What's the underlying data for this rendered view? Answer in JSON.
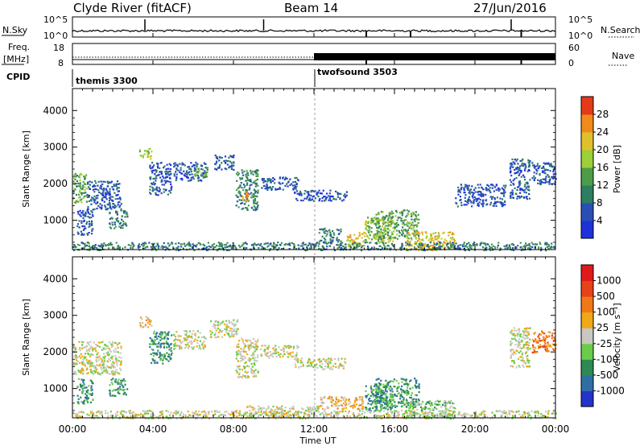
{
  "header": {
    "station": "Clyde River (fitACF)",
    "beam": "Beam 14",
    "date": "27/Jun/2016"
  },
  "param_panels": {
    "nsky_label": "N.Sky",
    "nsky_ticks": [
      "10^5",
      "10^0"
    ],
    "nsearch_label": "N.Search",
    "nsearch_ticks": [
      "10^5",
      "10^0"
    ],
    "freq_label_1": "Freq.",
    "freq_label_2": "[MHz]",
    "freq_ticks": [
      "18",
      "8"
    ],
    "nave_label": "Nave",
    "nave_ticks": [
      "60",
      "0"
    ],
    "cpid_label": "CPID",
    "cpid_modes": [
      {
        "name": "themis 3300",
        "start_hour": 0
      },
      {
        "name": "twofsound 3503",
        "start_hour": 12
      }
    ],
    "nsky_spikes_hours": [
      3.6,
      9.5,
      21.8
    ],
    "nsearch_drops_hours": [
      14.6,
      16.8,
      22.3
    ],
    "nave_drops_hours": [
      14.6,
      22.3
    ]
  },
  "chart_data": [
    {
      "type": "heatmap",
      "name": "power",
      "ylabel": "Slant Range [km]",
      "ylim": [
        200,
        4600
      ],
      "y_ticks": [
        1000,
        2000,
        3000,
        4000
      ],
      "xlim": [
        0,
        24
      ],
      "x_ticks": [
        "00:00",
        "04:00",
        "08:00",
        "12:00",
        "16:00",
        "20:00",
        "00:00"
      ],
      "colorbar": {
        "label": "Power [dB]",
        "ticks": [
          4,
          8,
          12,
          16,
          20,
          24,
          28
        ],
        "range": [
          0,
          32
        ],
        "colors": [
          "#1e32dc",
          "#2a4fb4",
          "#2e7e62",
          "#4d9c4a",
          "#9ccf3a",
          "#e0c02a",
          "#f08a1a",
          "#e53a1a"
        ]
      },
      "regions": [
        {
          "t0": 0.0,
          "t1": 0.7,
          "r0": 1500,
          "r1": 2300,
          "level": 3
        },
        {
          "t0": 0.7,
          "t1": 2.4,
          "r0": 1300,
          "r1": 2100,
          "level": 1
        },
        {
          "t0": 0.2,
          "t1": 1.0,
          "r0": 600,
          "r1": 1300,
          "level": 1
        },
        {
          "t0": 1.8,
          "t1": 2.7,
          "r0": 800,
          "r1": 1300,
          "level": 2
        },
        {
          "t0": 3.3,
          "t1": 3.9,
          "r0": 2700,
          "r1": 3000,
          "level": 4
        },
        {
          "t0": 3.8,
          "t1": 4.9,
          "r0": 1700,
          "r1": 2600,
          "level": 1
        },
        {
          "t0": 5.0,
          "t1": 6.6,
          "r0": 2100,
          "r1": 2600,
          "level": 1
        },
        {
          "t0": 6.0,
          "t1": 6.7,
          "r0": 2200,
          "r1": 2500,
          "level": 3
        },
        {
          "t0": 7.0,
          "t1": 8.0,
          "r0": 2400,
          "r1": 2800,
          "level": 1
        },
        {
          "t0": 8.1,
          "t1": 9.2,
          "r0": 1300,
          "r1": 2400,
          "level": 2
        },
        {
          "t0": 8.4,
          "t1": 8.8,
          "r0": 1550,
          "r1": 1800,
          "level": 6
        },
        {
          "t0": 9.3,
          "t1": 11.2,
          "r0": 1850,
          "r1": 2200,
          "level": 1
        },
        {
          "t0": 11.0,
          "t1": 13.6,
          "r0": 1550,
          "r1": 1850,
          "level": 1
        },
        {
          "t0": 12.2,
          "t1": 13.3,
          "r0": 400,
          "r1": 800,
          "level": 2
        },
        {
          "t0": 13.6,
          "t1": 14.5,
          "r0": 300,
          "r1": 700,
          "level": 5
        },
        {
          "t0": 14.5,
          "t1": 15.9,
          "r0": 400,
          "r1": 1100,
          "level": 4
        },
        {
          "t0": 15.0,
          "t1": 17.2,
          "r0": 500,
          "r1": 1300,
          "level": 3
        },
        {
          "t0": 16.5,
          "t1": 19.0,
          "r0": 200,
          "r1": 700,
          "level": 5
        },
        {
          "t0": 19.0,
          "t1": 21.5,
          "r0": 1400,
          "r1": 2000,
          "level": 1
        },
        {
          "t0": 21.7,
          "t1": 22.7,
          "r0": 1600,
          "r1": 2700,
          "level": 1
        },
        {
          "t0": 22.8,
          "t1": 24.0,
          "r0": 2000,
          "r1": 2600,
          "level": 1
        },
        {
          "t0": 0.0,
          "t1": 24.0,
          "r0": 200,
          "r1": 420,
          "level": 2
        }
      ]
    },
    {
      "type": "heatmap",
      "name": "velocity",
      "ylabel": "Slant Range [km]",
      "ylim": [
        200,
        4600
      ],
      "y_ticks": [
        1000,
        2000,
        3000,
        4000
      ],
      "xlim": [
        0,
        24
      ],
      "x_ticks": [
        "00:00",
        "04:00",
        "08:00",
        "12:00",
        "16:00",
        "20:00",
        "00:00"
      ],
      "xlabel": "Time UT",
      "colorbar": {
        "label": "Velocity [m s⁻¹]",
        "ticks": [
          "1000",
          "500",
          "100",
          "25",
          "-25",
          "-100",
          "-500",
          "-1000"
        ],
        "colors": [
          "#2433c8",
          "#2f6fa6",
          "#2e8a55",
          "#6acd4a",
          "#c8c8c0",
          "#f0a818",
          "#f07818",
          "#e8421a",
          "#e01a1a"
        ]
      },
      "regions": [
        {
          "t0": 0.0,
          "t1": 2.4,
          "r0": 1400,
          "r1": 2300,
          "level": 4
        },
        {
          "t0": 0.2,
          "t1": 1.0,
          "r0": 600,
          "r1": 1300,
          "level": 2
        },
        {
          "t0": 1.8,
          "t1": 2.7,
          "r0": 800,
          "r1": 1300,
          "level": 2
        },
        {
          "t0": 3.3,
          "t1": 3.9,
          "r0": 2700,
          "r1": 3000,
          "level": 5
        },
        {
          "t0": 3.8,
          "t1": 4.9,
          "r0": 1700,
          "r1": 2600,
          "level": 2
        },
        {
          "t0": 5.0,
          "t1": 6.6,
          "r0": 2100,
          "r1": 2600,
          "level": 4
        },
        {
          "t0": 6.8,
          "t1": 8.2,
          "r0": 2400,
          "r1": 2900,
          "level": 4
        },
        {
          "t0": 8.1,
          "t1": 9.2,
          "r0": 1300,
          "r1": 2400,
          "level": 4
        },
        {
          "t0": 9.3,
          "t1": 11.2,
          "r0": 1850,
          "r1": 2200,
          "level": 4
        },
        {
          "t0": 11.0,
          "t1": 13.6,
          "r0": 1550,
          "r1": 1850,
          "level": 4
        },
        {
          "t0": 8.6,
          "t1": 12.2,
          "r0": 250,
          "r1": 550,
          "level": 4
        },
        {
          "t0": 12.2,
          "t1": 14.4,
          "r0": 450,
          "r1": 800,
          "level": 5
        },
        {
          "t0": 14.5,
          "t1": 15.9,
          "r0": 400,
          "r1": 1100,
          "level": 2
        },
        {
          "t0": 15.0,
          "t1": 17.2,
          "r0": 500,
          "r1": 1300,
          "level": 2
        },
        {
          "t0": 16.5,
          "t1": 19.0,
          "r0": 200,
          "r1": 700,
          "level": 3
        },
        {
          "t0": 21.7,
          "t1": 22.7,
          "r0": 1600,
          "r1": 2700,
          "level": 4
        },
        {
          "t0": 22.8,
          "t1": 24.0,
          "r0": 2000,
          "r1": 2600,
          "level": 6
        },
        {
          "t0": 0.0,
          "t1": 24.0,
          "r0": 200,
          "r1": 420,
          "level": 4
        }
      ]
    }
  ]
}
